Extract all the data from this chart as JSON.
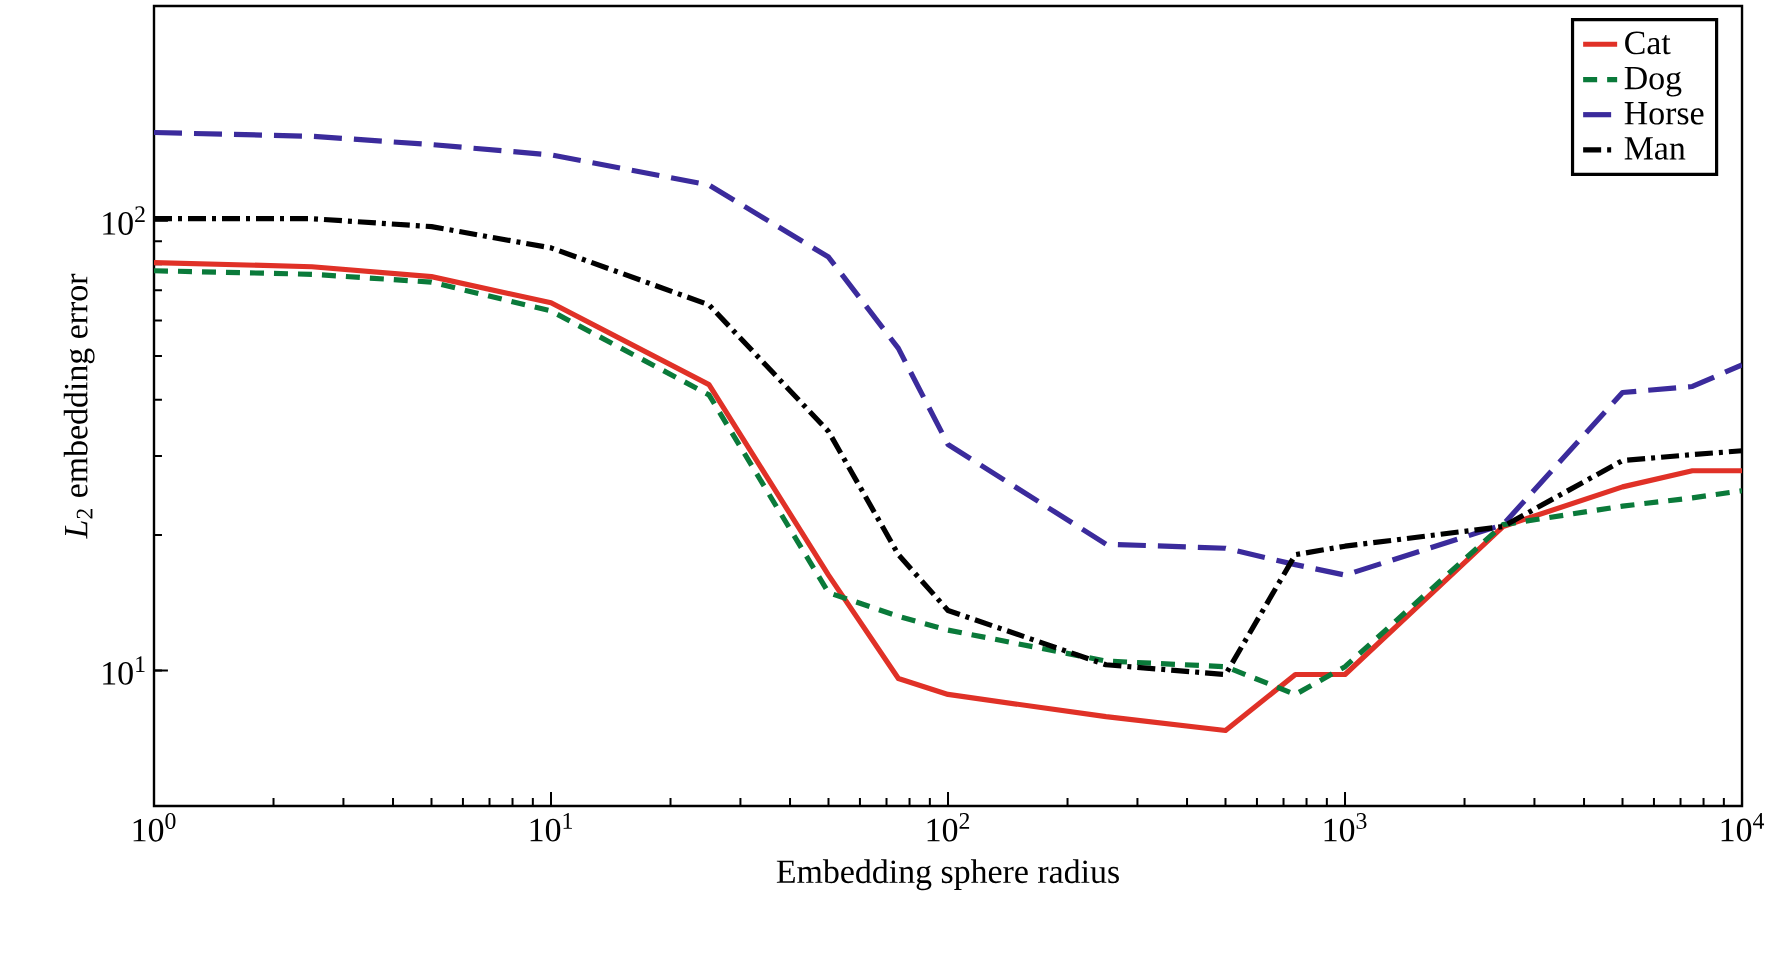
{
  "chart_data": {
    "type": "line",
    "xlabel": "Embedding sphere radius",
    "ylabel": "*L*$_{2}$ embedding error",
    "x": [
      1,
      2.5,
      5,
      10,
      25,
      50,
      75,
      100,
      250,
      500,
      750,
      1000,
      2500,
      5000,
      7500,
      10000
    ],
    "series": [
      {
        "name": "Cat",
        "color": "#e03127",
        "line_style": "solid",
        "values": [
          80.7,
          79.0,
          75.1,
          65.7,
          43.2,
          16.3,
          9.6,
          8.85,
          7.9,
          7.36,
          9.8,
          9.8,
          20.9,
          25.6,
          27.8,
          27.8
        ]
      },
      {
        "name": "Dog",
        "color": "#0a7a3a",
        "line_style": "dashed",
        "values": [
          77.4,
          76,
          73,
          63,
          41,
          14.9,
          13.2,
          12.3,
          10.5,
          10.2,
          8.85,
          10.2,
          21.1,
          23.2,
          24.2,
          25.1
        ]
      },
      {
        "name": "Horse",
        "color": "#3b2b9c",
        "line_style": "long dashed",
        "values": [
          157,
          154,
          147.6,
          140,
          120,
          83,
          52,
          31.8,
          19.1,
          18.7,
          17.2,
          16.3,
          21.1,
          41.5,
          42.8,
          47.8
        ]
      },
      {
        "name": "Man",
        "color": "#000000",
        "line_style": "dashdot",
        "values": [
          101,
          101,
          97,
          87,
          65,
          34,
          18.1,
          13.6,
          10.3,
          9.8,
          18.1,
          18.9,
          20.9,
          29.3,
          30.2,
          30.8
        ]
      }
    ],
    "log": "xy",
    "xlim": [
      1,
      10000
    ],
    "ylim": [
      5,
      300
    ],
    "xticks": [
      {
        "value": 1,
        "label": "10$^{0}$"
      },
      {
        "value": 10,
        "label": "10$^{1}$"
      },
      {
        "value": 100,
        "label": "10$^{2}$"
      },
      {
        "value": 1000,
        "label": "10$^{3}$"
      },
      {
        "value": 10000,
        "label": "10$^{4}$"
      }
    ],
    "yticks": [
      {
        "value": 10,
        "label": "10$^{1}$"
      },
      {
        "value": 100,
        "label": "10$^{2}$"
      }
    ],
    "legend": "top right",
    "grid": false,
    "marker": "none"
  }
}
